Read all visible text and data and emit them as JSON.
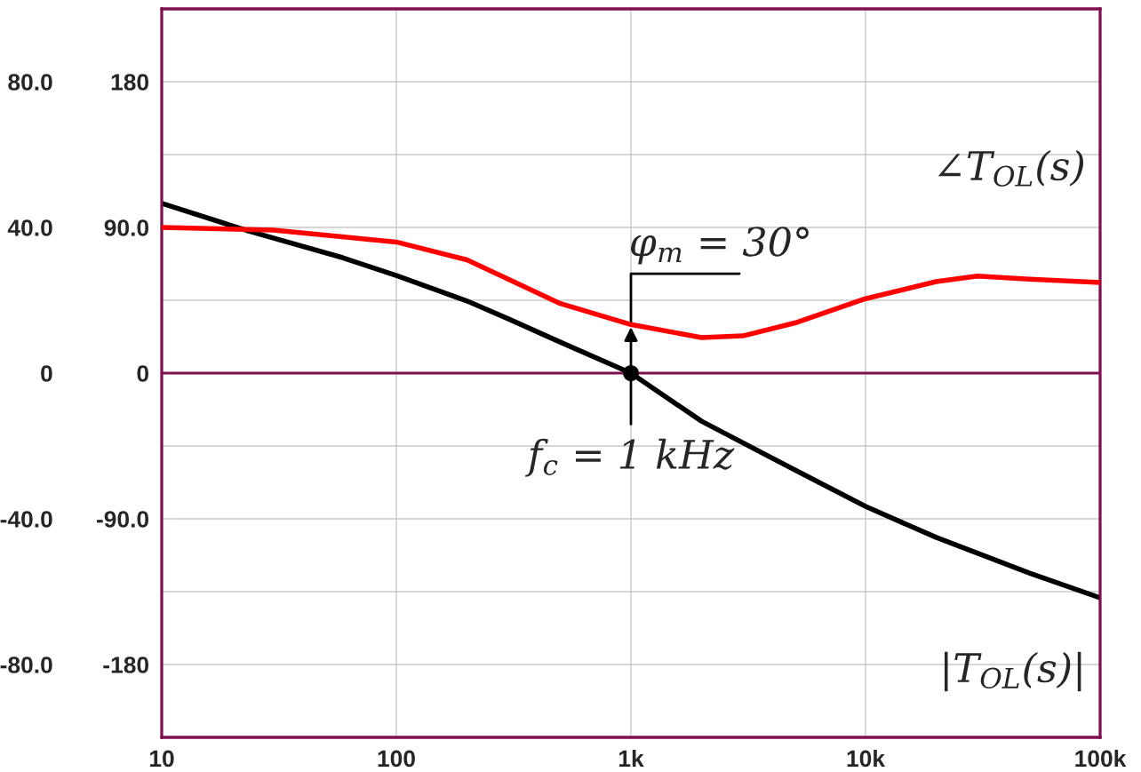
{
  "chart_data": {
    "type": "line",
    "log": "x",
    "grid": true,
    "marker": "none",
    "line_style": "solid",
    "xlim": [
      10,
      100000
    ],
    "xticks": [
      10,
      100,
      {
        "value": 1000,
        "label": "1k"
      },
      {
        "value": 10000,
        "label": "10k"
      },
      {
        "value": 100000,
        "label": "100k"
      }
    ],
    "ylim": [
      -100,
      100
    ],
    "yticks": [
      {
        "value": -100,
        "label": null
      },
      {
        "value": -80,
        "label": "-80.0"
      },
      {
        "value": -60,
        "label": null
      },
      {
        "value": -40,
        "label": "-40.0"
      },
      {
        "value": -20,
        "label": null
      },
      0,
      {
        "value": 20,
        "label": null
      },
      {
        "value": 40,
        "label": "40.0"
      },
      {
        "value": 60,
        "label": null
      },
      {
        "value": 80,
        "label": "80.0"
      },
      {
        "value": 100,
        "label": null
      }
    ],
    "y2lim": [
      -225,
      225
    ],
    "y2ticks": [
      -180,
      {
        "value": -90,
        "label": "-90.0"
      },
      0,
      {
        "value": 90,
        "label": "90.0"
      },
      180
    ],
    "ref_lines": [
      {
        "axis": "y",
        "value": 0,
        "color": "#7f1050"
      }
    ],
    "series": [
      {
        "name": "|T$_{OL}$(s)|",
        "color": "#000000",
        "x": [
          10,
          23.5,
          59,
          100,
          200,
          300,
          500,
          1000,
          2000,
          5000,
          10000,
          20000,
          50000,
          100000
        ],
        "values": [
          46.6,
          39.0,
          31.7,
          26.8,
          19.8,
          14.9,
          8.5,
          0,
          -13.2,
          -26.6,
          -36.6,
          -45.1,
          -54.9,
          -61.7
        ]
      },
      {
        "name": "∠T$_{OL}$(s)",
        "color": "#ff0000",
        "axis": "y2",
        "x": [
          10,
          30,
          100,
          200,
          300,
          500,
          1000,
          2000,
          3000,
          5000,
          10000,
          20000,
          30000,
          50000,
          100000
        ],
        "values": [
          90,
          88.4,
          81,
          70,
          58,
          43,
          30,
          22,
          23,
          31,
          46,
          56.5,
          60,
          58,
          56
        ]
      }
    ],
    "annotations": [
      {
        "text": "f$_{c}$ = 1 kHz",
        "x": 1000,
        "y": 0
      },
      {
        "text": "φ$_{m}$ = 30°",
        "x": 1000,
        "y": 13.3
      }
    ]
  }
}
